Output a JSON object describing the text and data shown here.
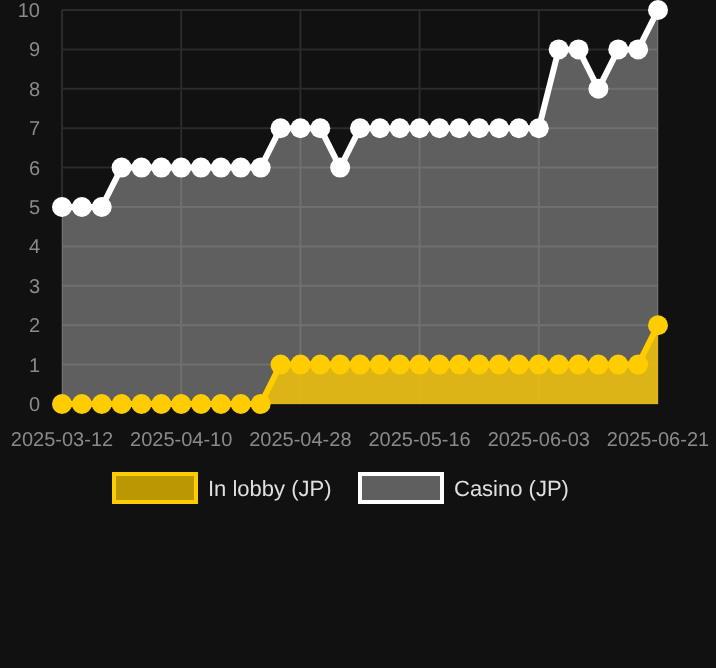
{
  "chart_data": {
    "type": "area",
    "categories": [
      "2025-03-12",
      null,
      null,
      null,
      null,
      null,
      "2025-04-10",
      null,
      null,
      null,
      null,
      null,
      "2025-04-28",
      null,
      null,
      null,
      null,
      null,
      "2025-05-16",
      null,
      null,
      null,
      null,
      null,
      "2025-06-03",
      null,
      null,
      null,
      null,
      null,
      "2025-06-21"
    ],
    "series": [
      {
        "name": "Casino (JP)",
        "color": "#ffffff",
        "values": [
          5,
          5,
          5,
          6,
          6,
          6,
          6,
          6,
          6,
          6,
          6,
          7,
          7,
          7,
          6,
          7,
          7,
          7,
          7,
          7,
          7,
          7,
          7,
          7,
          7,
          9,
          9,
          8,
          9,
          9,
          10
        ]
      },
      {
        "name": "In lobby (JP)",
        "color": "#ffcc00",
        "values": [
          0,
          0,
          0,
          0,
          0,
          0,
          0,
          0,
          0,
          0,
          0,
          1,
          1,
          1,
          1,
          1,
          1,
          1,
          1,
          1,
          1,
          1,
          1,
          1,
          1,
          1,
          1,
          1,
          1,
          1,
          2
        ]
      }
    ],
    "ylim": [
      0,
      10
    ],
    "yticks": [
      0,
      1,
      2,
      3,
      4,
      5,
      6,
      7,
      8,
      9,
      10
    ],
    "grid": true,
    "legend": "bottom",
    "marker": "circle"
  }
}
